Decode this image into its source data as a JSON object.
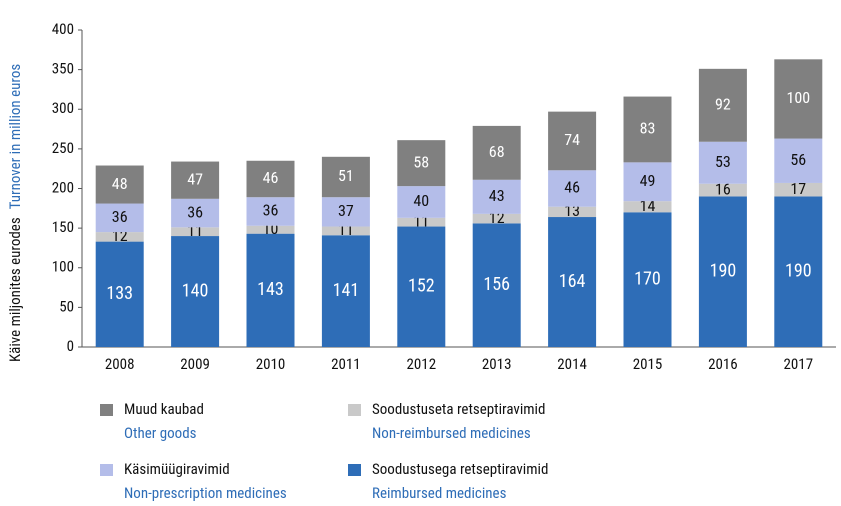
{
  "chart_data": {
    "type": "stacked_bar",
    "y_label": "Käive miljonites eurodes",
    "y_label_en": "Turnover in million euros",
    "categories": [
      "2008",
      "2009",
      "2010",
      "2011",
      "2012",
      "2013",
      "2014",
      "2015",
      "2016",
      "2017"
    ],
    "series": [
      {
        "name": "Soodustusega retseptiravimid",
        "name_en": "Reimbursed medicines",
        "color": "#2e6db7",
        "label_color": "#ffffff",
        "values": [
          133,
          140,
          143,
          141,
          152,
          156,
          164,
          170,
          190,
          190
        ]
      },
      {
        "name": "Soodustuseta retseptiravimid",
        "name_en": "Non-reimbursed medicines",
        "color": "#c9c9c9",
        "label_color": "#111111",
        "values": [
          12,
          11,
          10,
          11,
          11,
          12,
          13,
          14,
          16,
          17
        ]
      },
      {
        "name": "Käsimüügiravimid",
        "name_en": "Non-prescription medicines",
        "color": "#b4bde9",
        "label_color": "#111111",
        "values": [
          36,
          36,
          36,
          37,
          40,
          43,
          46,
          49,
          53,
          56
        ]
      },
      {
        "name": "Muud kaubad",
        "name_en": "Other goods",
        "color": "#808080",
        "label_color": "#ffffff",
        "values": [
          48,
          47,
          46,
          51,
          58,
          68,
          74,
          83,
          92,
          100
        ]
      }
    ],
    "legend_order": [
      3,
      1,
      2,
      0
    ],
    "ylim": [
      0,
      400
    ],
    "yticks": [
      0,
      50,
      100,
      150,
      200,
      250,
      300,
      350,
      400
    ],
    "grid": false
  }
}
